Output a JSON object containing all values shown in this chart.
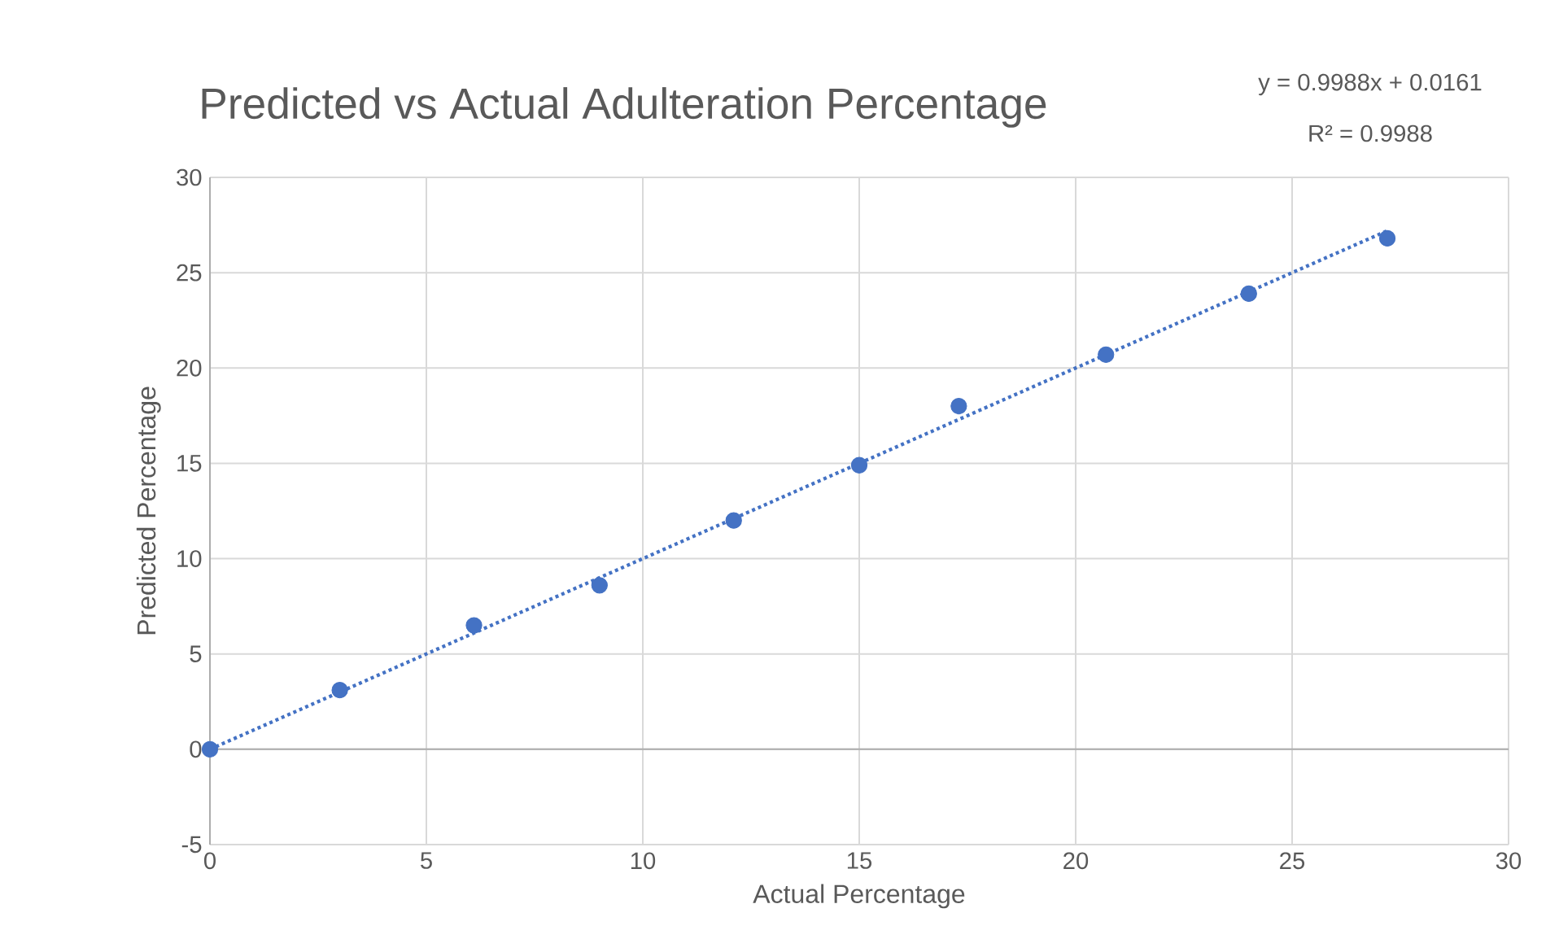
{
  "chart_data": {
    "type": "scatter",
    "title": "Predicted vs Actual Adulteration Percentage",
    "xlabel": "Actual Percentage",
    "ylabel": "Predicted Percentage",
    "annotations": [
      "y = 0.9988x + 0.0161",
      "R² = 0.9988"
    ],
    "series": [
      {
        "color": "#4472c4",
        "marker": "circle",
        "x": [
          0,
          3,
          6.1,
          9,
          12.1,
          15,
          17.3,
          20.7,
          24,
          27.2
        ],
        "values": [
          0,
          3.1,
          6.5,
          8.6,
          12,
          14.9,
          18,
          20.7,
          23.9,
          26.8
        ]
      },
      {
        "type": "line",
        "color": "#4472c4",
        "marker": "none",
        "line_style": "dotted",
        "x": [
          0,
          27.2
        ],
        "values": [
          0,
          27.2
        ]
      }
    ],
    "xlim": [
      0,
      30
    ],
    "xticks": [
      0,
      5,
      10,
      15,
      20,
      25,
      30
    ],
    "ylim": [
      -5,
      30
    ],
    "yticks": [
      -5,
      0,
      5,
      10,
      15,
      20,
      25,
      30
    ],
    "grid": true
  }
}
